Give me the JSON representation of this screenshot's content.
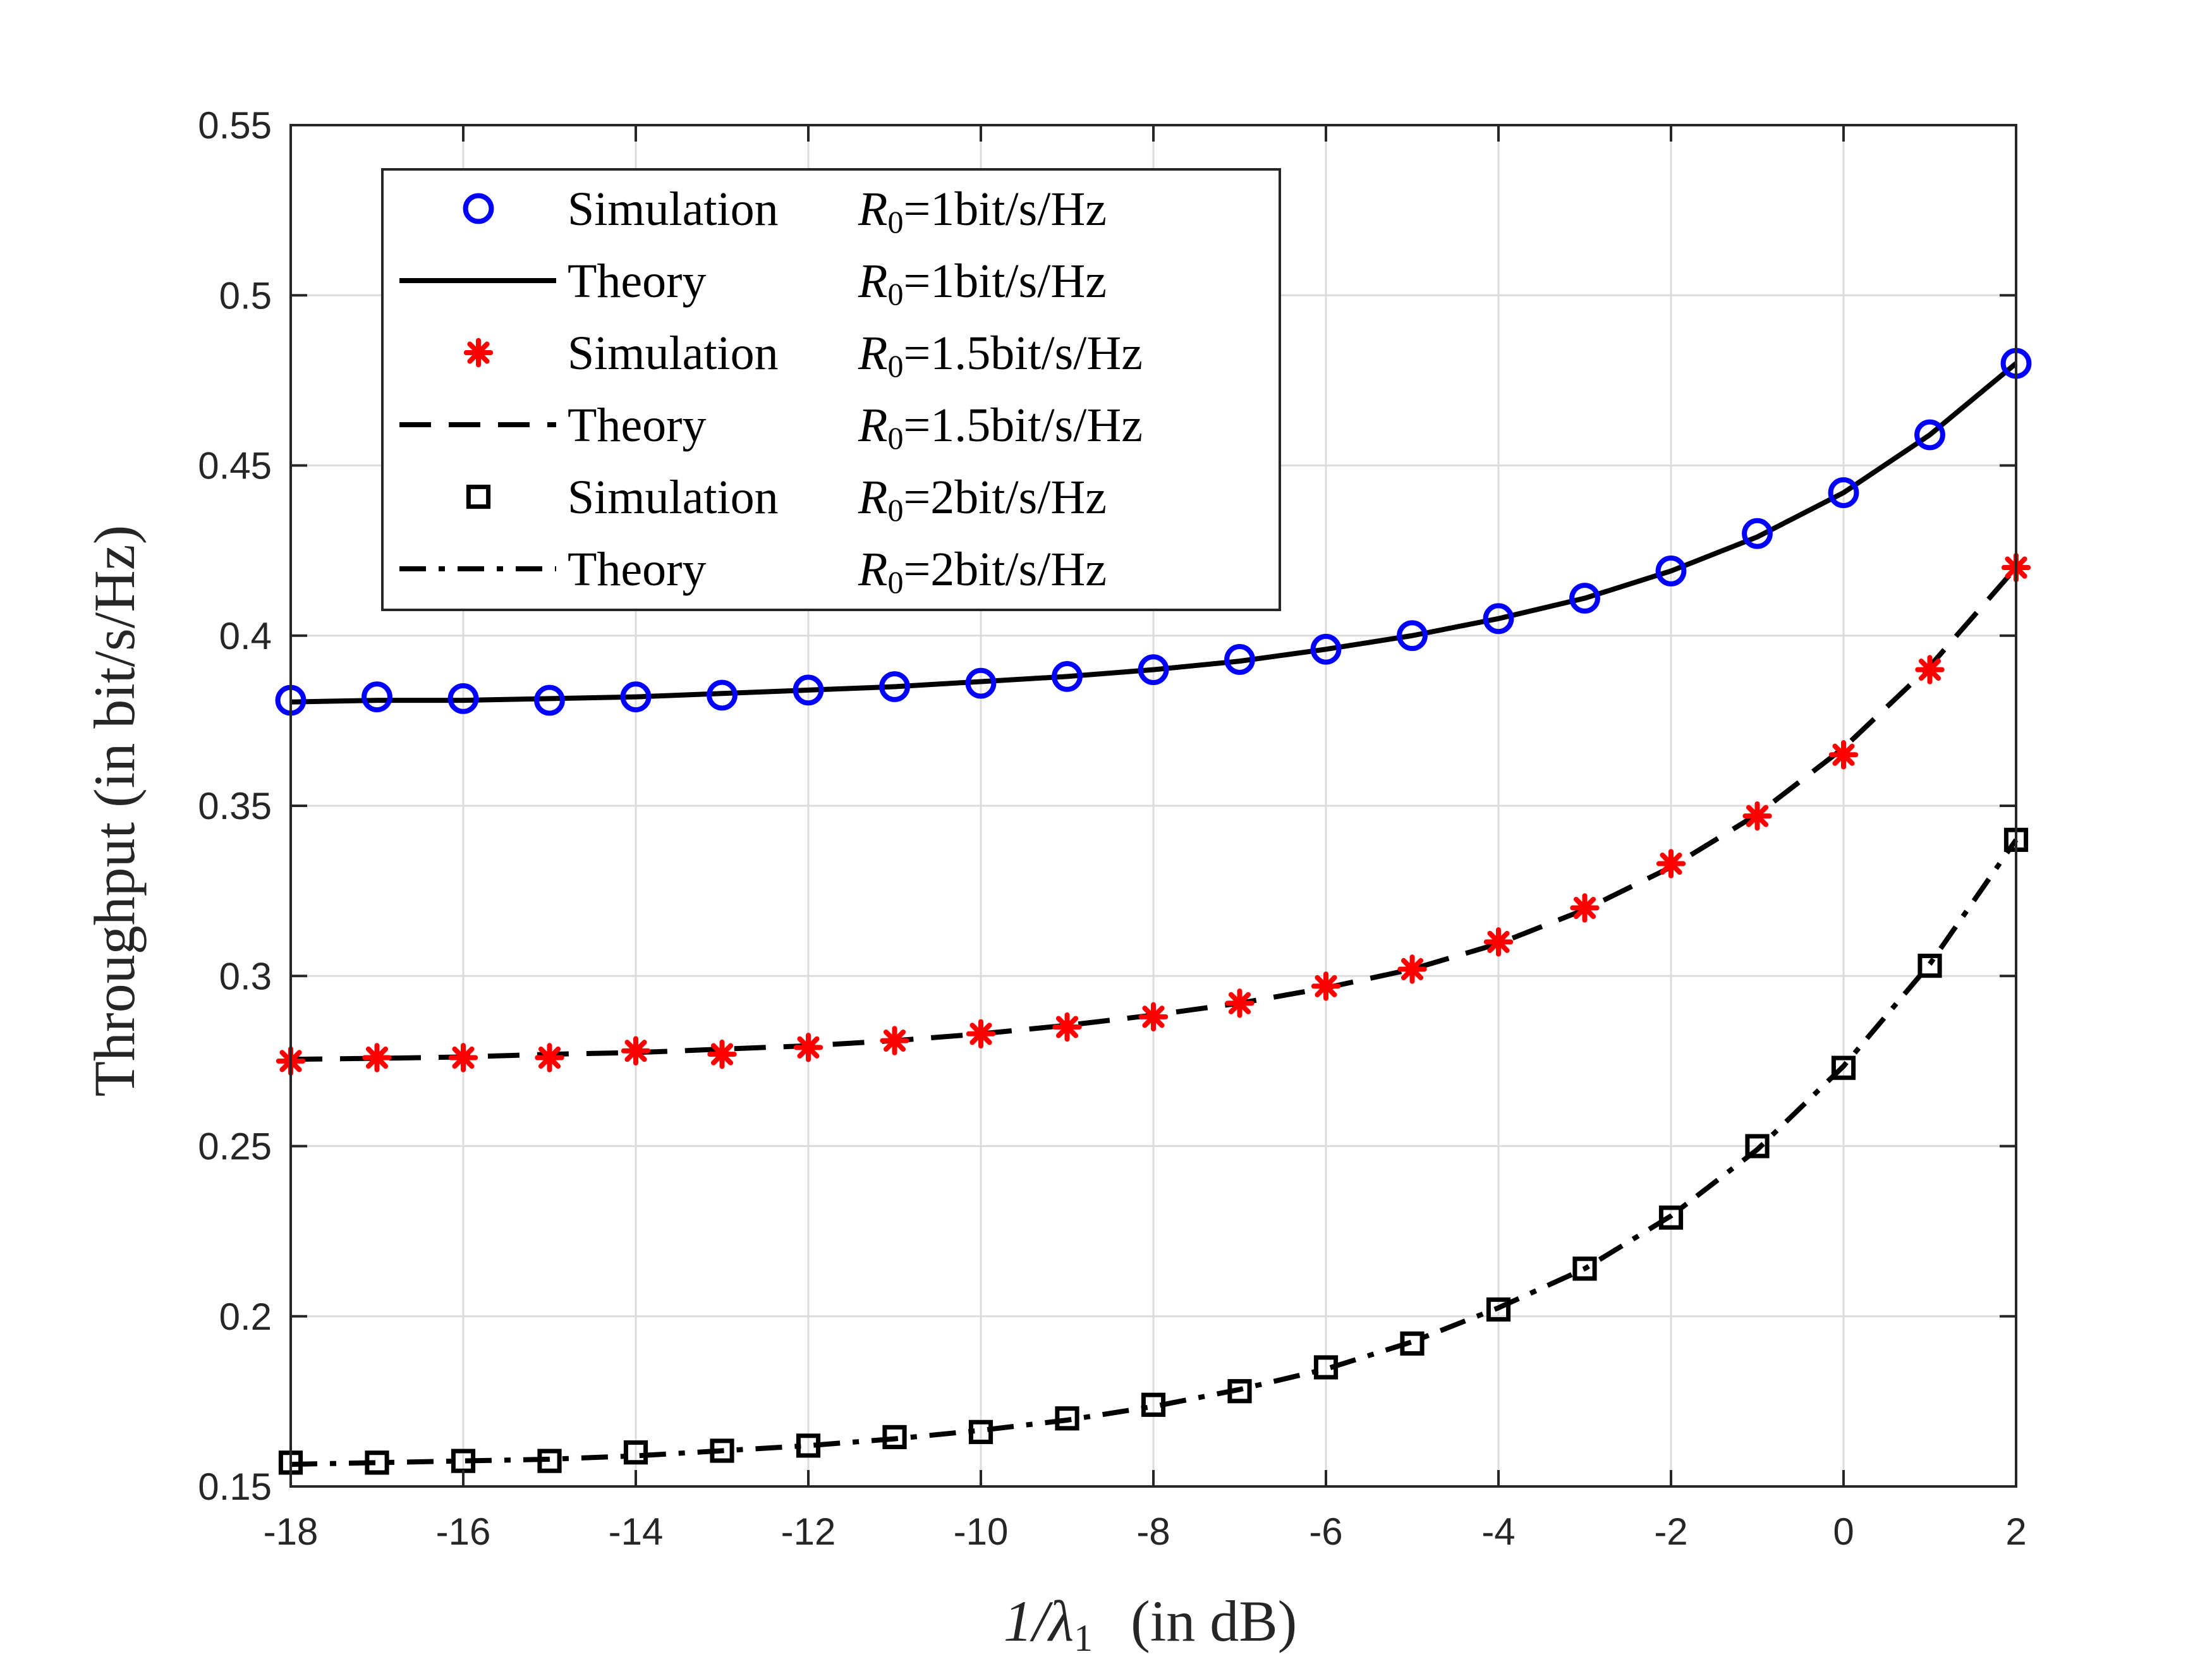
{
  "chart_data": {
    "type": "line",
    "title": "",
    "xlabel_main": "1/λ",
    "xlabel_sub": "1",
    "xlabel_unit": "(in dB)",
    "ylabel": "Throughput (in bit/s/Hz)",
    "xlim": [
      -18,
      2
    ],
    "ylim": [
      0.15,
      0.55
    ],
    "xticks": [
      -18,
      -16,
      -14,
      -12,
      -10,
      -8,
      -6,
      -4,
      -2,
      0,
      2
    ],
    "xtick_labels": [
      "-18",
      "-16",
      "-14",
      "-12",
      "-10",
      "-8",
      "-6",
      "-4",
      "-2",
      "0",
      "2"
    ],
    "yticks": [
      0.15,
      0.2,
      0.25,
      0.3,
      0.35,
      0.4,
      0.45,
      0.5,
      0.55
    ],
    "ytick_labels": [
      "0.15",
      "0.2",
      "0.25",
      "0.3",
      "0.35",
      "0.4",
      "0.45",
      "0.5",
      "0.55"
    ],
    "grid": true,
    "legend_position": "top-left",
    "x": [
      -18,
      -17,
      -16,
      -15,
      -14,
      -13,
      -12,
      -11,
      -10,
      -9,
      -8,
      -7,
      -6,
      -5,
      -4,
      -3,
      -2,
      -1,
      0,
      1,
      2
    ],
    "series": [
      {
        "name": "Simulation R0=1bit/s/Hz",
        "kind": "markers",
        "marker": "circle",
        "color": "#0000ff",
        "values": [
          0.381,
          0.382,
          0.3815,
          0.381,
          0.382,
          0.3825,
          0.384,
          0.385,
          0.386,
          0.388,
          0.39,
          0.393,
          0.396,
          0.4,
          0.405,
          0.411,
          0.419,
          0.43,
          0.442,
          0.459,
          0.48
        ]
      },
      {
        "name": "Theory R0=1bit/s/Hz",
        "kind": "line",
        "dash": "solid",
        "color": "#000000",
        "values": [
          0.3805,
          0.381,
          0.381,
          0.3815,
          0.382,
          0.383,
          0.384,
          0.385,
          0.3865,
          0.388,
          0.39,
          0.3925,
          0.396,
          0.4,
          0.405,
          0.411,
          0.419,
          0.429,
          0.442,
          0.459,
          0.48
        ]
      },
      {
        "name": "Simulation R0=1.5bit/s/Hz",
        "kind": "markers",
        "marker": "asterisk",
        "color": "#ff0000",
        "values": [
          0.275,
          0.276,
          0.276,
          0.276,
          0.278,
          0.277,
          0.279,
          0.281,
          0.283,
          0.285,
          0.288,
          0.292,
          0.297,
          0.302,
          0.31,
          0.32,
          0.333,
          0.347,
          0.365,
          0.39,
          0.42
        ]
      },
      {
        "name": "Theory R0=1.5bit/s/Hz",
        "kind": "line",
        "dash": "dashed",
        "color": "#000000",
        "values": [
          0.2755,
          0.2758,
          0.2762,
          0.277,
          0.2775,
          0.2785,
          0.2795,
          0.281,
          0.283,
          0.2855,
          0.2885,
          0.292,
          0.2965,
          0.302,
          0.3095,
          0.3195,
          0.332,
          0.3475,
          0.367,
          0.391,
          0.42
        ]
      },
      {
        "name": "Simulation R0=2bit/s/Hz",
        "kind": "markers",
        "marker": "square",
        "color": "#000000",
        "values": [
          0.157,
          0.157,
          0.1575,
          0.1575,
          0.16,
          0.1605,
          0.162,
          0.1645,
          0.166,
          0.17,
          0.174,
          0.178,
          0.185,
          0.192,
          0.202,
          0.214,
          0.229,
          0.25,
          0.273,
          0.303,
          0.34
        ]
      },
      {
        "name": "Theory R0=2bit/s/Hz",
        "kind": "line",
        "dash": "dashdot",
        "color": "#000000",
        "values": [
          0.1565,
          0.157,
          0.1575,
          0.158,
          0.159,
          0.1605,
          0.162,
          0.164,
          0.1665,
          0.1695,
          0.1735,
          0.1785,
          0.1845,
          0.1925,
          0.2025,
          0.214,
          0.2295,
          0.249,
          0.2735,
          0.3035,
          0.34
        ]
      }
    ],
    "legend": [
      {
        "kind": "Simulation",
        "param": "=1bit/s/Hz"
      },
      {
        "kind": "Theory",
        "param": "=1bit/s/Hz"
      },
      {
        "kind": "Simulation",
        "param": "=1.5bit/s/Hz"
      },
      {
        "kind": "Theory",
        "param": "=1.5bit/s/Hz"
      },
      {
        "kind": "Simulation",
        "param": "=2bit/s/Hz"
      },
      {
        "kind": "Theory",
        "param": "=2bit/s/Hz"
      }
    ],
    "legend_symbol": "R",
    "legend_symbol_sub": "0"
  }
}
